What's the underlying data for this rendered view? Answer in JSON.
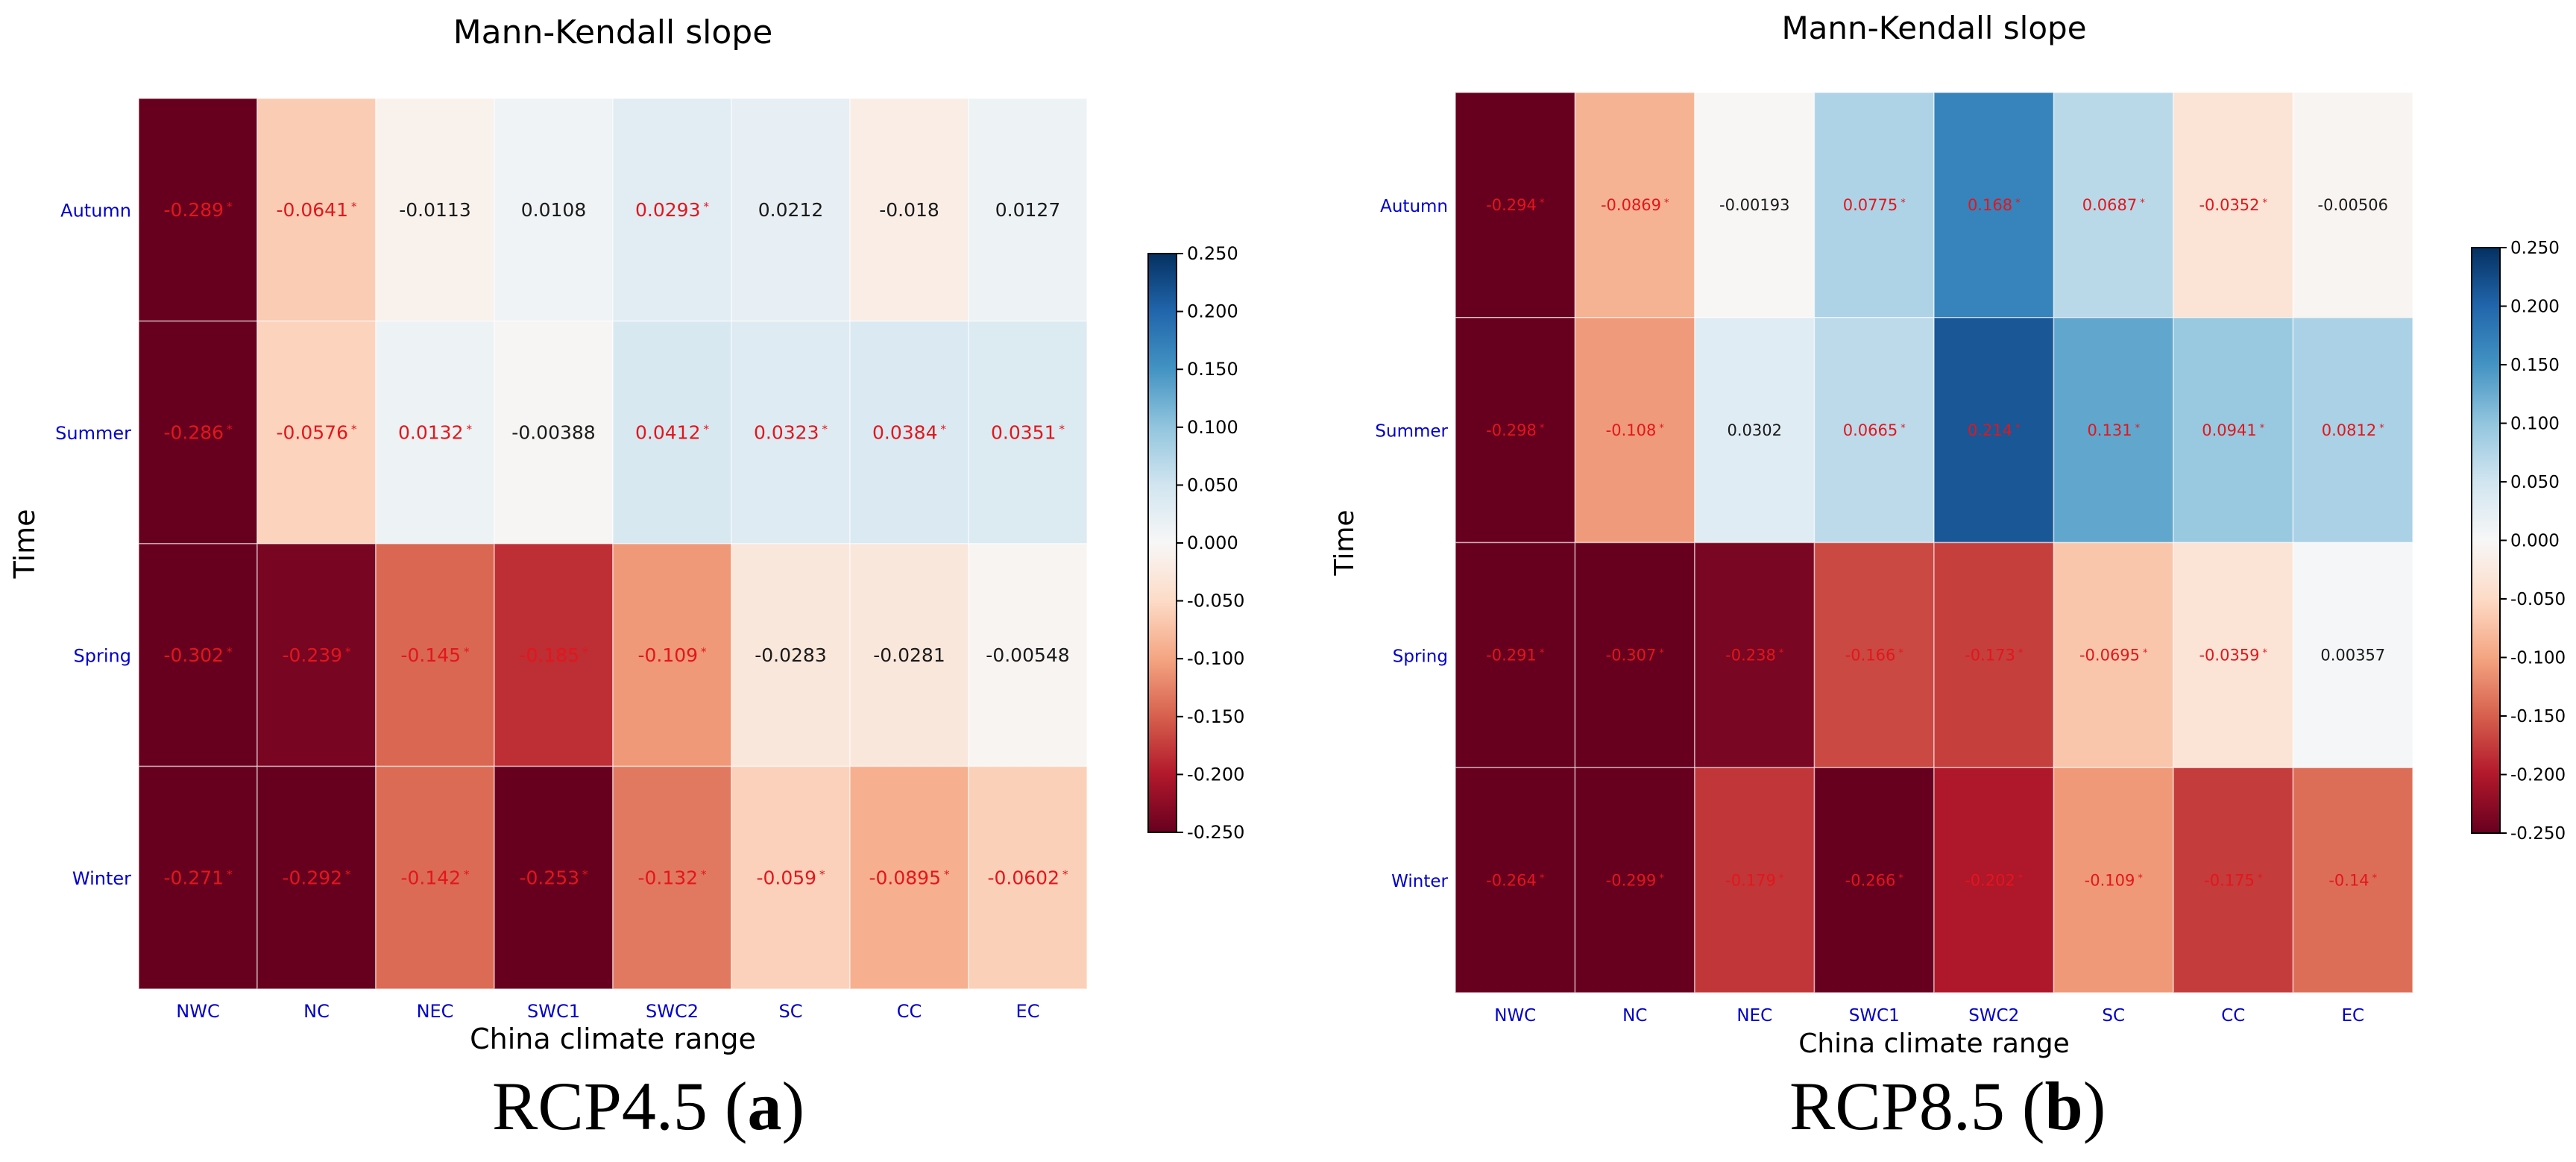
{
  "colors": {
    "significant_text": "#e3161b",
    "normal_text": "#1a1a1a",
    "tick_label": "#0000cc",
    "axis_text": "#000000",
    "colormap": "RdBu"
  },
  "chart_data": [
    {
      "type": "heatmap",
      "title": "Mann-Kendall slope",
      "xlabel": "China climate range",
      "ylabel": "Time",
      "caption": {
        "text": "RCP4.5 (",
        "bold": "a",
        "close": ")"
      },
      "categories": [
        "NWC",
        "NC",
        "NEC",
        "SWC1",
        "SWC2",
        "SC",
        "CC",
        "EC"
      ],
      "rows": [
        "Autumn",
        "Summer",
        "Spring",
        "Winter"
      ],
      "values": [
        [
          -0.289,
          -0.0641,
          -0.0113,
          0.0108,
          0.0293,
          0.0212,
          -0.018,
          0.0127
        ],
        [
          -0.286,
          -0.0576,
          0.0132,
          -0.00388,
          0.0412,
          0.0323,
          0.0384,
          0.0351
        ],
        [
          -0.302,
          -0.239,
          -0.145,
          -0.185,
          -0.109,
          -0.0283,
          -0.0281,
          -0.00548
        ],
        [
          -0.271,
          -0.292,
          -0.142,
          -0.253,
          -0.132,
          -0.059,
          -0.0895,
          -0.0602
        ]
      ],
      "labels": [
        [
          "-0.289",
          "-0.0641",
          "-0.0113",
          "0.0108",
          "0.0293",
          "0.0212",
          "-0.018",
          "0.0127"
        ],
        [
          "-0.286",
          "-0.0576",
          "0.0132",
          "-0.00388",
          "0.0412",
          "0.0323",
          "0.0384",
          "0.0351"
        ],
        [
          "-0.302",
          "-0.239",
          "-0.145",
          "-0.185",
          "-0.109",
          "-0.0283",
          "-0.0281",
          "-0.00548"
        ],
        [
          "-0.271",
          "-0.292",
          "-0.142",
          "-0.253",
          "-0.132",
          "-0.059",
          "-0.0895",
          "-0.0602"
        ]
      ],
      "significant": [
        [
          true,
          true,
          false,
          false,
          true,
          false,
          false,
          false
        ],
        [
          true,
          true,
          true,
          false,
          true,
          true,
          true,
          true
        ],
        [
          true,
          true,
          true,
          true,
          true,
          false,
          false,
          false
        ],
        [
          true,
          true,
          true,
          true,
          true,
          true,
          true,
          true
        ]
      ],
      "significance_marker": "*",
      "colorbar": {
        "vmin": -0.25,
        "vmax": 0.25,
        "ticks": [
          "0.250",
          "0.200",
          "0.150",
          "0.100",
          "0.050",
          "0.000",
          "-0.050",
          "-0.100",
          "-0.150",
          "-0.200",
          "-0.250"
        ]
      }
    },
    {
      "type": "heatmap",
      "title": "Mann-Kendall slope",
      "xlabel": "China climate range",
      "ylabel": "Time",
      "caption": {
        "text": "RCP8.5 (",
        "bold": "b",
        "close": ")"
      },
      "categories": [
        "NWC",
        "NC",
        "NEC",
        "SWC1",
        "SWC2",
        "SC",
        "CC",
        "EC"
      ],
      "rows": [
        "Autumn",
        "Summer",
        "Spring",
        "Winter"
      ],
      "values": [
        [
          -0.294,
          -0.0869,
          -0.00193,
          0.0775,
          0.168,
          0.0687,
          -0.0352,
          -0.00506
        ],
        [
          -0.298,
          -0.108,
          0.0302,
          0.0665,
          0.214,
          0.131,
          0.0941,
          0.0812
        ],
        [
          -0.291,
          -0.307,
          -0.238,
          -0.166,
          -0.173,
          -0.0695,
          -0.0359,
          0.00357
        ],
        [
          -0.264,
          -0.299,
          -0.179,
          -0.266,
          -0.202,
          -0.109,
          -0.175,
          -0.14
        ]
      ],
      "labels": [
        [
          "-0.294",
          "-0.0869",
          "-0.00193",
          "0.0775",
          "0.168",
          "0.0687",
          "-0.0352",
          "-0.00506"
        ],
        [
          "-0.298",
          "-0.108",
          "0.0302",
          "0.0665",
          "0.214",
          "0.131",
          "0.0941",
          "0.0812"
        ],
        [
          "-0.291",
          "-0.307",
          "-0.238",
          "-0.166",
          "-0.173",
          "-0.0695",
          "-0.0359",
          "0.00357"
        ],
        [
          "-0.264",
          "-0.299",
          "-0.179",
          "-0.266",
          "-0.202",
          "-0.109",
          "-0.175",
          "-0.14"
        ]
      ],
      "significant": [
        [
          true,
          true,
          false,
          true,
          true,
          true,
          true,
          false
        ],
        [
          true,
          true,
          false,
          true,
          true,
          true,
          true,
          true
        ],
        [
          true,
          true,
          true,
          true,
          true,
          true,
          true,
          false
        ],
        [
          true,
          true,
          true,
          true,
          true,
          true,
          true,
          true
        ]
      ],
      "significance_marker": "*",
      "colorbar": {
        "vmin": -0.25,
        "vmax": 0.25,
        "ticks": [
          "0.250",
          "0.200",
          "0.150",
          "0.100",
          "0.050",
          "0.000",
          "-0.050",
          "-0.100",
          "-0.150",
          "-0.200",
          "-0.250"
        ]
      }
    }
  ]
}
